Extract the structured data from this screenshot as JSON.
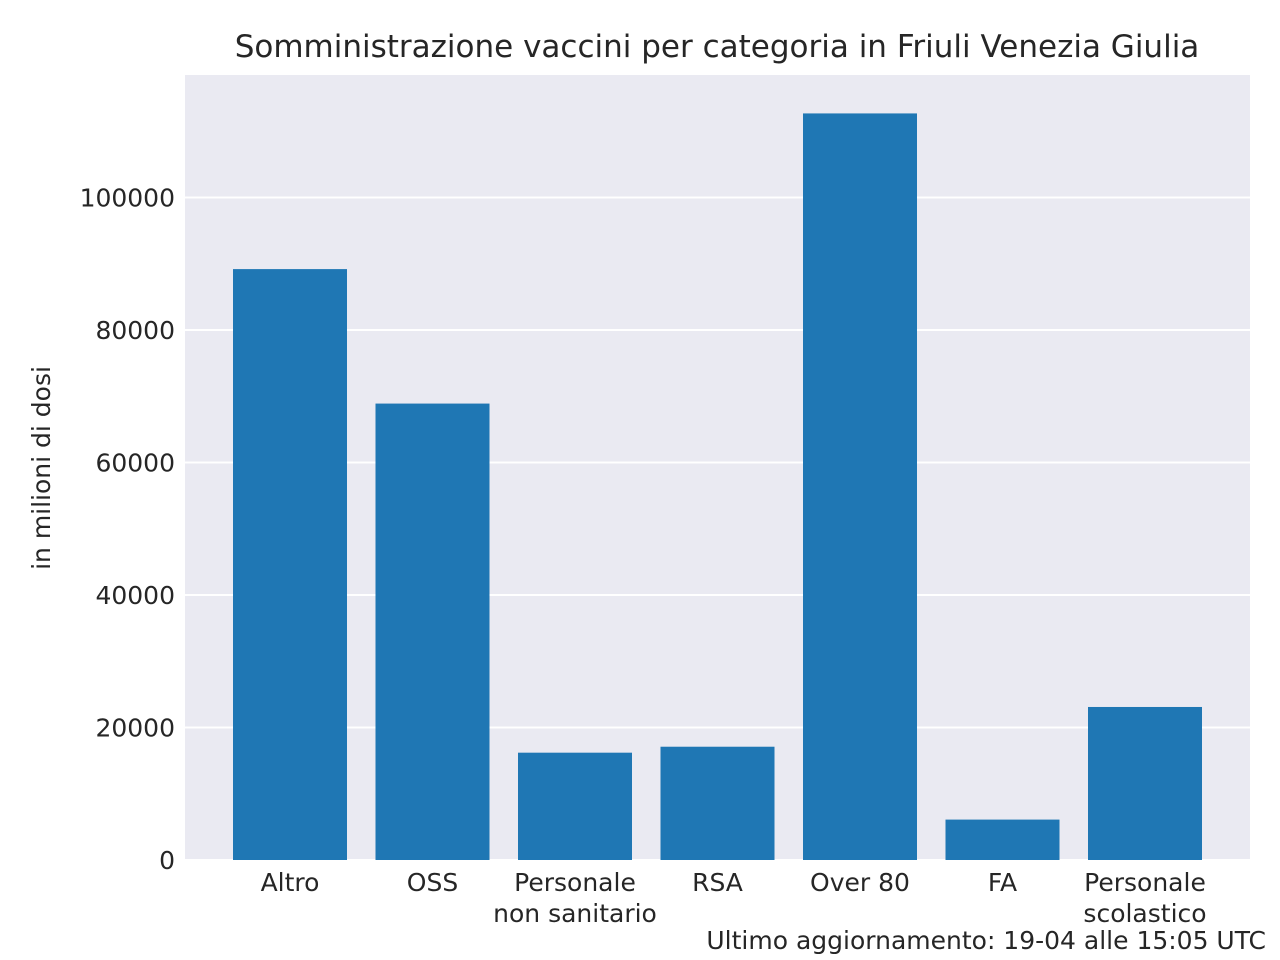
{
  "chart_data": {
    "type": "bar",
    "title": "Somministrazione vaccini per categoria in Friuli Venezia Giulia",
    "xlabel": "",
    "ylabel": "in milioni di dosi",
    "categories": [
      [
        "Altro"
      ],
      [
        "OSS"
      ],
      [
        "Personale",
        "non sanitario"
      ],
      [
        "RSA"
      ],
      [
        "Over 80"
      ],
      [
        "FA"
      ],
      [
        "Personale",
        "scolastico"
      ]
    ],
    "values": [
      89200,
      68900,
      16200,
      17100,
      112700,
      6100,
      23100
    ],
    "ylim": [
      0,
      118500
    ],
    "yticks": [
      0,
      20000,
      40000,
      60000,
      80000,
      100000
    ],
    "ytick_labels": [
      "0",
      "20000",
      "40000",
      "60000",
      "80000",
      "100000"
    ],
    "grid": true,
    "legend": "none",
    "colors": {
      "bar": "#1f77b4",
      "plot_background": "#eaeaf2",
      "grid": "#ffffff",
      "text": "#262626"
    }
  },
  "footnote": "Ultimo aggiornamento: 19-04 alle 15:05 UTC"
}
